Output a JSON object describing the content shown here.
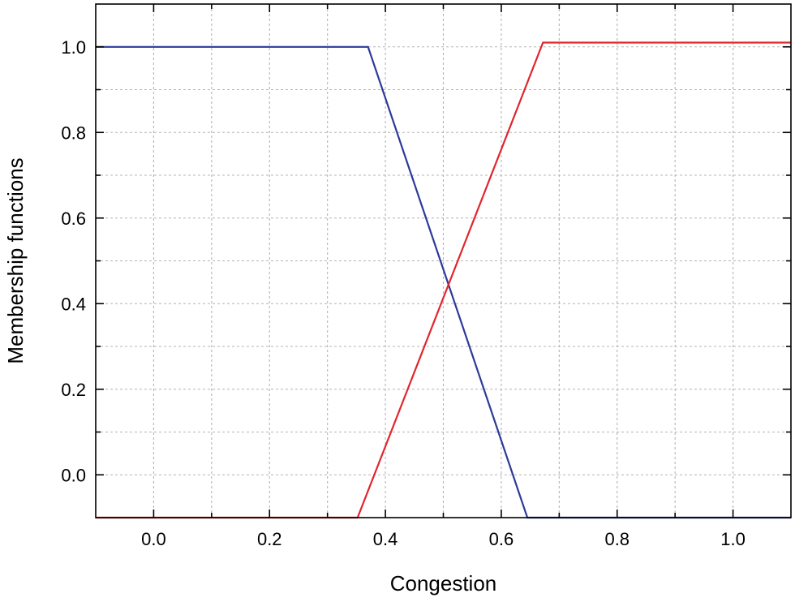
{
  "chart_data": {
    "type": "line",
    "xlabel": "Congestion",
    "ylabel": "Membership functions",
    "xlim": [
      -0.1,
      1.1
    ],
    "ylim": [
      -0.1,
      1.1
    ],
    "x_ticks": [
      0.0,
      0.2,
      0.4,
      0.6,
      0.8,
      1.0
    ],
    "x_tick_labels": [
      "0.0",
      "0.2",
      "0.4",
      "0.6",
      "0.8",
      "1.0"
    ],
    "y_ticks": [
      0.0,
      0.2,
      0.4,
      0.6,
      0.8,
      1.0
    ],
    "y_tick_labels": [
      "0.0",
      "0.2",
      "0.4",
      "0.6",
      "0.8",
      "1.0"
    ],
    "grid": true,
    "series": [
      {
        "color": "#2b3a9a",
        "points": [
          [
            -0.1,
            1.0
          ],
          [
            0.37,
            1.0
          ],
          [
            0.645,
            -0.1
          ],
          [
            1.1,
            -0.1
          ]
        ]
      },
      {
        "color": "#e0262d",
        "points": [
          [
            -0.1,
            -0.1
          ],
          [
            0.352,
            -0.1
          ],
          [
            0.672,
            1.01
          ],
          [
            1.1,
            1.01
          ]
        ]
      }
    ]
  }
}
